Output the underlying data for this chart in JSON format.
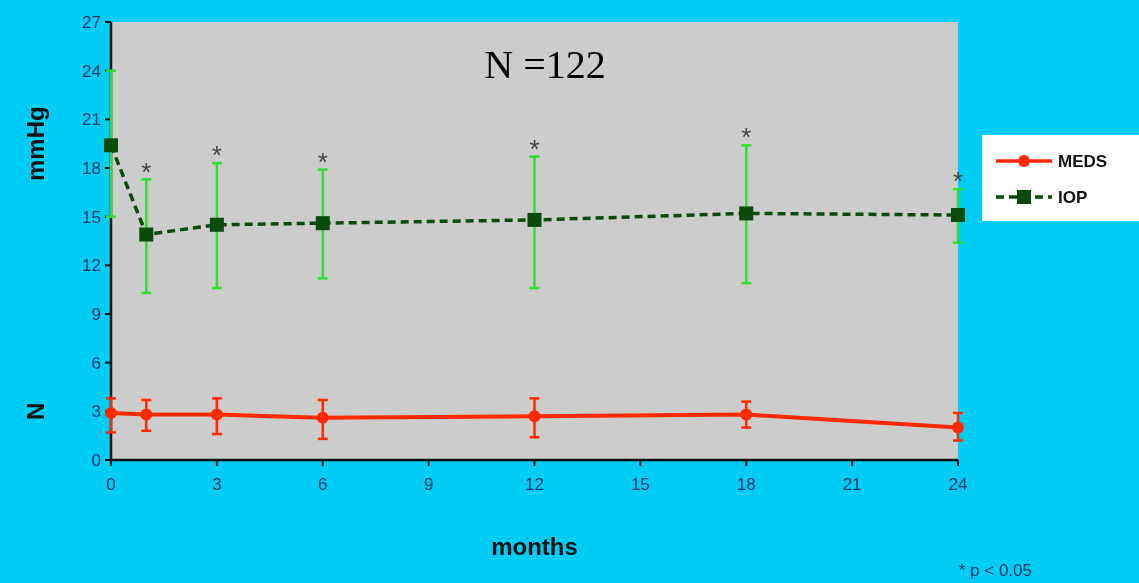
{
  "chart_data": {
    "type": "line",
    "xlabel": "months",
    "ylabel": "mmHg",
    "x": [
      0,
      1,
      3,
      6,
      12,
      18,
      24
    ],
    "xlim": [
      0,
      24
    ],
    "xticks": [
      0,
      3,
      6,
      9,
      12,
      15,
      18,
      21,
      24
    ],
    "ylim": [
      0,
      27
    ],
    "yticks": [
      0,
      3,
      6,
      9,
      12,
      15,
      18,
      21,
      24,
      27
    ],
    "series": [
      {
        "name": "MEDS",
        "color": "#ff2a00",
        "marker": "circle",
        "line_style": "solid",
        "values": [
          2.9,
          2.8,
          2.8,
          2.6,
          2.7,
          2.8,
          2.0
        ],
        "errors": [
          [
            1.7,
            3.8
          ],
          [
            1.8,
            3.7
          ],
          [
            1.6,
            3.8
          ],
          [
            1.3,
            3.7
          ],
          [
            1.4,
            3.8
          ],
          [
            2.0,
            3.6
          ],
          [
            1.2,
            2.9
          ]
        ]
      },
      {
        "name": "IOP",
        "color": "#0a4a0a",
        "marker": "square",
        "line_style": "dashed",
        "values": [
          19.4,
          13.9,
          14.5,
          14.6,
          14.8,
          15.2,
          15.1
        ],
        "errors": [
          [
            15,
            24
          ],
          [
            10.3,
            17.3
          ],
          [
            10.6,
            18.3
          ],
          [
            11.2,
            17.9
          ],
          [
            10.6,
            18.7
          ],
          [
            10.9,
            19.4
          ],
          [
            13.4,
            16.7
          ]
        ]
      }
    ],
    "legend": "right",
    "grid": false,
    "annotations": [
      "N =122",
      "N",
      "* p < 0.05",
      {
        "text": "*",
        "x": 1,
        "y": 17.3
      },
      {
        "text": "*",
        "x": 3,
        "y": 18.3
      },
      {
        "text": "*",
        "x": 6,
        "y": 17.9
      },
      {
        "text": "*",
        "x": 12,
        "y": 18.7
      },
      {
        "text": "*",
        "x": 18,
        "y": 19.4
      },
      {
        "text": "*",
        "x": 24,
        "y": 16.7
      }
    ]
  }
}
